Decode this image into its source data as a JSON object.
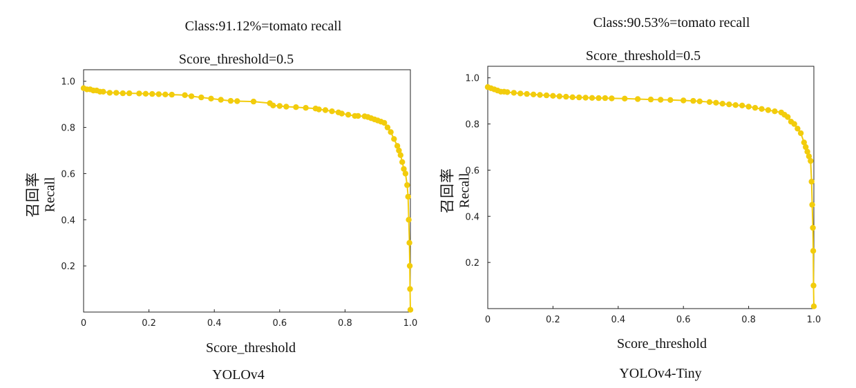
{
  "chart_data": [
    {
      "type": "scatter",
      "title": "Class:91.12%=tomato recall",
      "subtitle": "Score_threshold=0.5",
      "xlabel": "Score_threshold",
      "ylabel_cn": "召回率",
      "ylabel": "Recall",
      "caption": "YOLOv4",
      "xlim": [
        0,
        1
      ],
      "ylim": [
        0,
        1.05
      ],
      "xticks": [
        "0",
        "0.2",
        "0.4",
        "0.6",
        "0.8",
        "1.0"
      ],
      "yticks": [
        "0.2",
        "0.4",
        "0.6",
        "0.8",
        "1.0"
      ],
      "grid": false,
      "color": "#f2cc0c",
      "series": [
        {
          "x": [
            0.0,
            0.01,
            0.02,
            0.03,
            0.04,
            0.05,
            0.06,
            0.08,
            0.1,
            0.12,
            0.14,
            0.17,
            0.19,
            0.21,
            0.23,
            0.25,
            0.27,
            0.31,
            0.33,
            0.36,
            0.39,
            0.42,
            0.45,
            0.47,
            0.52,
            0.57,
            0.58,
            0.6,
            0.62,
            0.65,
            0.68,
            0.71,
            0.72,
            0.74,
            0.76,
            0.78,
            0.79,
            0.81,
            0.83,
            0.84,
            0.86,
            0.87,
            0.88,
            0.89,
            0.9,
            0.91,
            0.92,
            0.93,
            0.94,
            0.95,
            0.96,
            0.965,
            0.97,
            0.975,
            0.98,
            0.985,
            0.99,
            0.993,
            0.995,
            0.997,
            0.998,
            0.999,
            1.0
          ],
          "y": [
            0.97,
            0.965,
            0.965,
            0.96,
            0.96,
            0.955,
            0.955,
            0.95,
            0.95,
            0.948,
            0.948,
            0.947,
            0.946,
            0.945,
            0.944,
            0.943,
            0.942,
            0.94,
            0.935,
            0.93,
            0.925,
            0.92,
            0.915,
            0.914,
            0.912,
            0.905,
            0.895,
            0.893,
            0.89,
            0.888,
            0.885,
            0.882,
            0.878,
            0.875,
            0.87,
            0.865,
            0.86,
            0.855,
            0.85,
            0.85,
            0.848,
            0.845,
            0.84,
            0.835,
            0.83,
            0.825,
            0.82,
            0.8,
            0.78,
            0.75,
            0.72,
            0.7,
            0.68,
            0.65,
            0.62,
            0.6,
            0.55,
            0.5,
            0.4,
            0.3,
            0.2,
            0.1,
            0.01
          ]
        }
      ]
    },
    {
      "type": "scatter",
      "title": "Class:90.53%=tomato recall",
      "subtitle": "Score_threshold=0.5",
      "xlabel": "Score_threshold",
      "ylabel_cn": "召回率",
      "ylabel": "Recall",
      "caption": "YOLOv4-Tiny",
      "xlim": [
        0,
        1
      ],
      "ylim": [
        0,
        1.05
      ],
      "xticks": [
        "0",
        "0.2",
        "0.4",
        "0.6",
        "0.8",
        "1.0"
      ],
      "yticks": [
        "0.2",
        "0.4",
        "0.6",
        "0.8",
        "1.0"
      ],
      "grid": false,
      "color": "#f2cc0c",
      "series": [
        {
          "x": [
            0.0,
            0.01,
            0.02,
            0.03,
            0.04,
            0.05,
            0.06,
            0.08,
            0.1,
            0.12,
            0.14,
            0.16,
            0.18,
            0.2,
            0.22,
            0.24,
            0.26,
            0.28,
            0.3,
            0.32,
            0.34,
            0.36,
            0.38,
            0.42,
            0.46,
            0.5,
            0.53,
            0.56,
            0.6,
            0.63,
            0.65,
            0.68,
            0.7,
            0.72,
            0.74,
            0.76,
            0.78,
            0.8,
            0.82,
            0.84,
            0.86,
            0.88,
            0.9,
            0.91,
            0.92,
            0.93,
            0.94,
            0.95,
            0.96,
            0.97,
            0.975,
            0.98,
            0.985,
            0.99,
            0.993,
            0.995,
            0.997,
            0.998,
            0.999,
            1.0
          ],
          "y": [
            0.96,
            0.955,
            0.95,
            0.945,
            0.94,
            0.94,
            0.938,
            0.935,
            0.932,
            0.93,
            0.928,
            0.926,
            0.924,
            0.922,
            0.92,
            0.918,
            0.916,
            0.915,
            0.914,
            0.913,
            0.912,
            0.912,
            0.911,
            0.91,
            0.908,
            0.906,
            0.905,
            0.904,
            0.902,
            0.9,
            0.898,
            0.895,
            0.892,
            0.888,
            0.885,
            0.882,
            0.88,
            0.875,
            0.87,
            0.865,
            0.86,
            0.855,
            0.85,
            0.84,
            0.83,
            0.81,
            0.8,
            0.78,
            0.76,
            0.72,
            0.7,
            0.68,
            0.66,
            0.64,
            0.55,
            0.45,
            0.35,
            0.25,
            0.1,
            0.01
          ]
        }
      ]
    }
  ]
}
